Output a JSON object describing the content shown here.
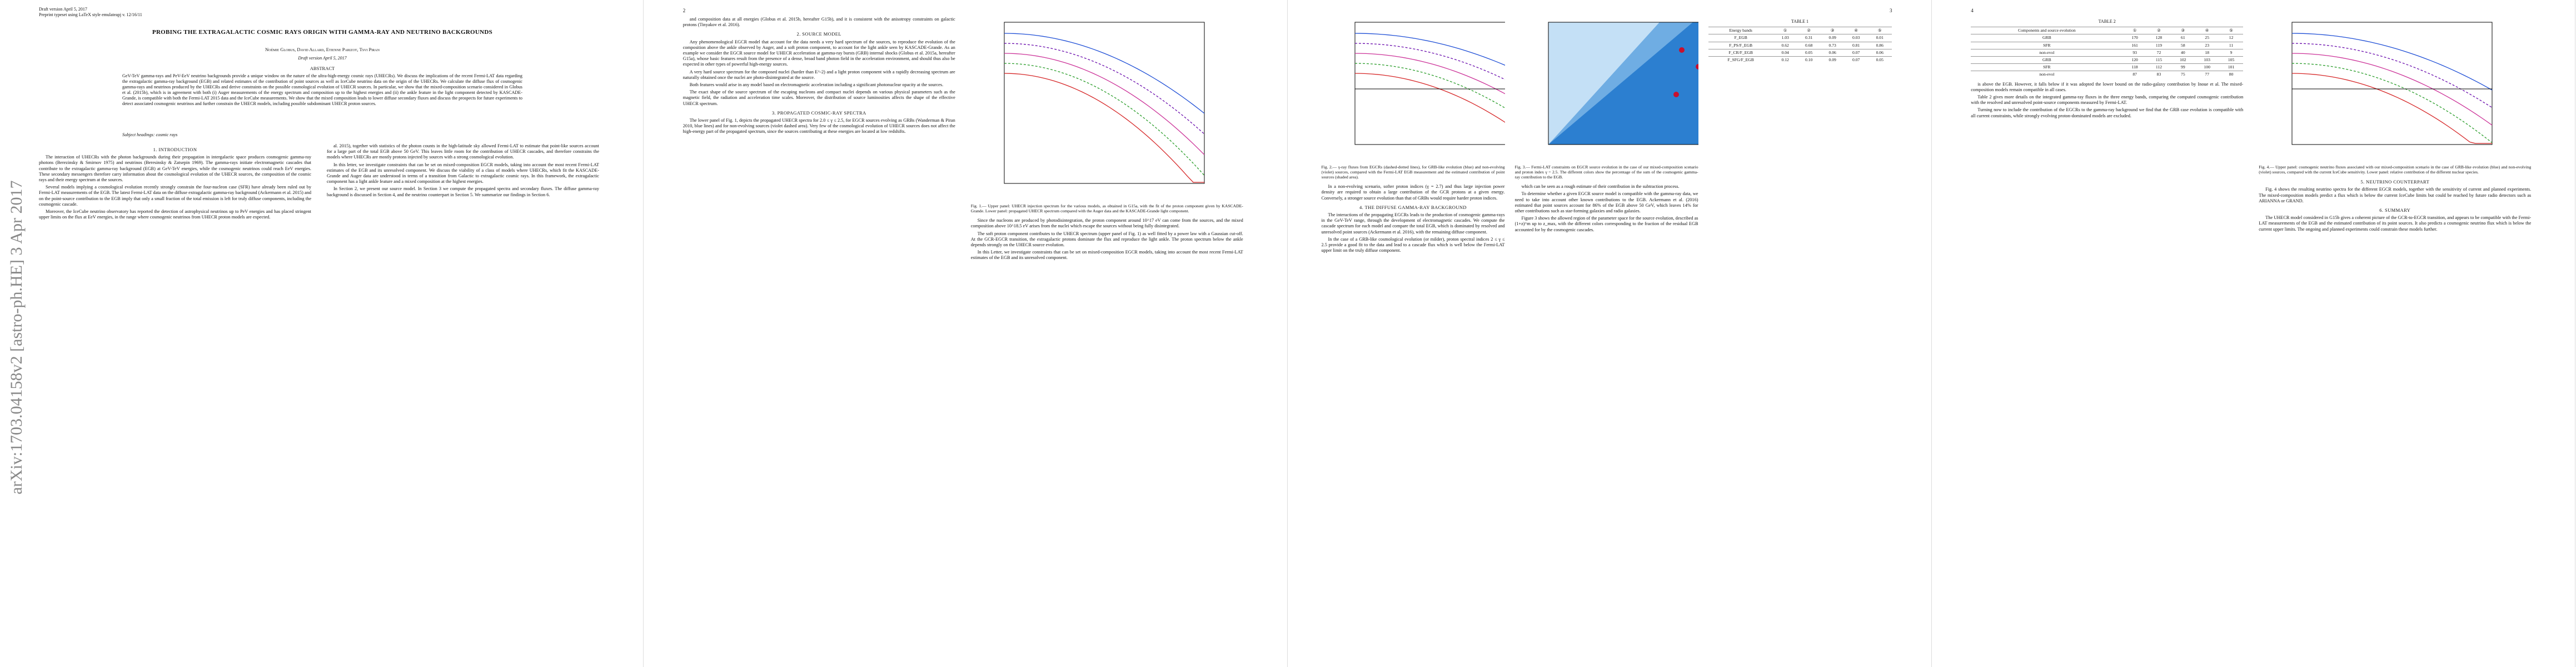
{
  "arxiv": "arXiv:1703.04158v2 [astro-ph.HE] 3 Apr 2017",
  "pages": [
    {
      "header": [
        "Draft version April 5, 2017",
        "Preprint typeset using LaTeX style emulateapj v. 12/16/11"
      ],
      "title": "PROBING THE EXTRAGALACTIC COSMIC RAYS ORIGIN WITH GAMMA-RAY AND NEUTRINO BACKGROUNDS",
      "authors": "Noémie Globus, David Allard, Etienne Parizot, Tsvi Piran",
      "date": "Draft version April 5, 2017",
      "abstract_heading": "ABSTRACT",
      "abstract": "GeV-TeV gamma-rays and PeV-EeV neutrino backgrounds provide a unique window on the nature of the ultra-high-energy cosmic rays (UHECRs). We discuss the implications of the recent Fermi-LAT data regarding the extragalactic gamma-ray background (EGB) and related estimates of the contribution of point sources as well as IceCube neutrino data on the origin of the UHECRs. We calculate the diffuse flux of cosmogenic gamma-rays and neutrinos produced by the UHECRs and derive constraints on the possible cosmological evolution of UHECR sources. In particular, we show that the mixed-composition scenario considered in Globus et al. (2015b), which is in agreement with both (i) Auger measurements of the energy spectrum and composition up to the highest energies and (ii) the ankle feature in the light component detected by KASCADE-Grande, is compatible with both the Fermi-LAT 2015 data and the IceCube measurements. We show that the mixed composition leads to lower diffuse secondary fluxes and discuss the prospects for future experiments to detect associated cosmogenic neutrinos and further constrain the UHECR models, including possible subdominant UHECR proton sources.",
      "subject": "Subject headings: cosmic rays",
      "columns": [
        [
          {
            "h": "1. INTRODUCTION"
          },
          {
            "p": "The interaction of UHECRs with the photon backgrounds during their propagation in intergalactic space produces cosmogenic gamma-ray photons (Berezinsky & Smirnov 1975) and neutrinos (Beresinsky & Zatsepin 1969). The gamma-rays initiate electromagnetic cascades that contribute to the extragalactic gamma-ray background (EGB) at GeV-TeV energies, while the cosmogenic neutrinos could reach EeV energies. These secondary messengers therefore carry information about the cosmological evolution of the UHECR sources, the composition of the cosmic rays and their energy spectrum at the sources."
          },
          {
            "p": "Several models implying a cosmological evolution recently strongly constrain the four-nucleon case (SFR) have already been ruled out by Fermi-LAT measurements of the EGB. The latest Fermi-LAT data on the diffuse extragalactic gamma-ray background (Ackermann et al. 2015) and on the point-source contribution to the EGB imply that only a small fraction of the total emission is left for truly diffuse components, including the cosmogenic cascade."
          },
          {
            "p": "Moreover, the IceCube neutrino observatory has reported the detection of astrophysical neutrinos up to PeV energies and has placed stringent upper limits on the flux at EeV energies, in the range where cosmogenic neutrinos from UHECR proton models are expected."
          }
        ],
        [
          {
            "p": "al. 2015), together with statistics of the photon counts in the high-latitude sky allowed Fermi-LAT to estimate that point-like sources account for a large part of the total EGB above 50 GeV. This leaves little room for the contribution of UHECR cascades, and therefore constrains the models where UHECRs are mostly protons injected by sources with a strong cosmological evolution."
          },
          {
            "p": "In this letter, we investigate constraints that can be set on mixed-composition EGCR models, taking into account the most recent Fermi-LAT estimates of the EGB and its unresolved component. We discuss the viability of a class of models where UHECRs, which fit the KASCADE-Grande and Auger data are understood in terms of a transition from Galactic to extragalactic cosmic rays. In this framework, the extragalactic component has a light ankle feature and a mixed composition at the highest energies."
          },
          {
            "p": "In Section 2, we present our source model. In Section 3 we compute the propagated spectra and secondary fluxes. The diffuse gamma-ray background is discussed in Section 4, and the neutrino counterpart in Section 5. We summarize our findings in Section 6."
          }
        ]
      ]
    },
    {
      "number": "2",
      "columns": [
        [
          {
            "p": "and composition data at all energies (Globus et al. 2015b, hereafter G15b), and it is consistent with the anisotropy constraints on galactic protons (Tinyakov et al. 2016)."
          },
          {
            "h": "2. SOURCE MODEL"
          },
          {
            "p": "Any phenomenological EGCR model that account for the data needs a very hard spectrum of the sources, to reproduce the evolution of the composition above the ankle observed by Auger, and a soft proton component, to account for the light ankle seen by KASCADE-Grande. As an example we consider the EGCR source model for UHECR acceleration at gamma-ray bursts (GRB) internal shocks (Globus et al. 2015a, hereafter G15a), whose basic features result from the presence of a dense, broad band photon field in the acceleration environment, and should thus also be expected in other types of powerful high-energy sources."
          },
          {
            "p": "A very hard source spectrum for the composed nuclei (harder than E^-2) and a light proton component with a rapidly decreasing spectrum are naturally obtained once the nuclei are photo-disintegrated at the source."
          },
          {
            "p": "Both features would arise in any model based on electromagnetic acceleration including a significant photonuclear opacity at the sources."
          },
          {
            "p": "The exact shape of the source spectrum of the escaping nucleons and compact nuclei depends on various physical parameters such as the magnetic field, the radiation and acceleration time scales. Moreover, the distribution of source luminosities affects the shape of the effective UHECR spectrum."
          },
          {
            "h": "3. PROPAGATED COSMIC-RAY SPECTRA"
          },
          {
            "p": "The lower panel of Fig. 1, depicts the propagated UHECR spectra for 2.0 ≤ γ ≤ 2.5, for EGCR sources evolving as GRBs (Wanderman & Piran 2010, blue lines) and for non-evolving sources (violet dashed area). Very few of the cosmological evolution of UHECR sources does not affect the high-energy part of the propagated spectrum, since the sources contributing at these energies are located at low redshifts."
          }
        ],
        [
          {
            "fig": "Fig. 1.— Upper panel: UHECR injection spectrum for the various models, as obtained in G15a, with the fit of the proton component given by KASCADE-Grande. Lower panel: propagated UHECR spectrum compared with the Auger data and the KASCADE-Grande light component."
          },
          {
            "p": "Since the nucleons are produced by photodisintegration, the proton component around 10^17 eV can come from the sources, and the mixed composition above 10^18.5 eV arises from the nuclei which escape the sources without being fully disintegrated."
          },
          {
            "p": "The soft proton component contributes to the UHECR spectrum (upper panel of Fig. 1) as well fitted by a power law with a Gaussian cut-off. At the GCR-EGCR transition, the extragalactic protons dominate the flux and reproduce the light ankle. The proton spectrum below the ankle depends strongly on the UHECR source evolution."
          },
          {
            "p": "In this Letter, we investigate constraints that can be set on mixed-composition EGCR models, taking into account the most recent Fermi-LAT estimates of the EGB and its unresolved component."
          }
        ]
      ]
    },
    {
      "number": "3",
      "columns": [
        [
          {
            "fig": "Fig. 2.— γ-ray fluxes from EGCRs (dashed-dotted lines), for GRB-like evolution (blue) and non-evolving (violet) sources, compared with the Fermi-LAT EGB measurement and the estimated contribution of point sources (shaded area)."
          },
          {
            "p": "In a non-evolving scenario, softer proton indices (γ = 2.7) and thus large injection power density are required to obtain a large contribution of the GCR protons at a given energy. Conversely, a stronger source evolution than that of GRBs would require harder proton indices."
          },
          {
            "h": "4. THE DIFFUSE GAMMA-RAY BACKGROUND"
          },
          {
            "p": "The interactions of the propagating EGCRs leads to the production of cosmogenic gamma-rays in the GeV-TeV range, through the development of electromagnetic cascades. We compute the cascade spectrum for each model and compare the total EGB, which is dominated by resolved and unresolved point sources (Ackermann et al. 2016), with the remaining diffuse component."
          },
          {
            "p": "In the case of a GRB-like cosmological evolution (or milder), proton spectral indices 2 ≤ γ ≤ 2.5 provide a good fit to the data and lead to a cascade flux which is well below the Fermi-LAT upper limit on the truly diffuse component."
          }
        ],
        [
          {
            "fig": "Fig. 3.— Fermi-LAT constraints on EGCR source evolution in the case of our mixed-composition scenario and proton index γ = 2.5. The different colors show the percentage of the sum of the cosmogenic gamma-ray contribution to the EGB."
          },
          {
            "p": "which can be seen as a rough estimate of their contribution in the subtraction process."
          },
          {
            "p": "To determine whether a given EGCR source model is compatible with the gamma-ray data, we need to take into account other known contributions to the EGB. Ackermann et al. (2016) estimated that point sources account for 86% of the EGB above 50 GeV, which leaves 14% for other contributions such as star-forming galaxies and radio galaxies."
          },
          {
            "p": "Figure 3 shows the allowed region of the parameter space for the source evolution, described as (1+z)^m up to z_max, with the different colors corresponding to the fraction of the residual EGB accounted for by the cosmogenic cascades."
          }
        ],
        [
          {
            "table": "TABLE 1"
          }
        ]
      ]
    },
    {
      "number": "4",
      "columns": [
        [
          {
            "table": "TABLE 2"
          },
          {
            "p": "is above the EGB. However, it falls below if it was adopted the lower bound on the radio-galaxy contribution by Inoue et al. The mixed-composition models remain compatible in all cases."
          },
          {
            "p": "Table 2 gives more details on the integrated gamma-ray fluxes in the three energy bands, comparing the computed cosmogenic contribution with the resolved and unresolved point-source components measured by Fermi-LAT."
          },
          {
            "p": "Turning now to include the contribution of the EGCRs to the gamma-ray background we find that the GRB case evolution is compatible with all current constraints, while strongly evolving proton-dominated models are excluded."
          }
        ],
        [
          {
            "fig": "Fig. 4.— Upper panel: cosmogenic neutrino fluxes associated with our mixed-composition scenario in the case of GRB-like evolution (blue) and non-evolving (violet) sources, compared with the current IceCube sensitivity. Lower panel: relative contribution of the different nuclear species."
          },
          {
            "h": "5. NEUTRINO COUNTERPART"
          },
          {
            "p": "Fig. 4 shows the resulting neutrino spectra for the different EGCR models, together with the sensitivity of current and planned experiments. The mixed-composition models predict a flux which is below the current IceCube limits but could be reached by future radio detectors such as ARIANNA or GRAND."
          },
          {
            "h": "6. SUMMARY"
          },
          {
            "p": "The UHECR model considered in G15b gives a coherent picture of the GCR-to-EGCR transition, and appears to be compatible with the Fermi-LAT measurements of the EGB and the estimated contribution of its point sources. It also predicts a cosmogenic neutrino flux which is below the current upper limits. The ongoing and planned experiments could constrain these models further."
          }
        ]
      ]
    }
  ],
  "table1": {
    "header": [
      "Energy bands",
      "①",
      "②",
      "③",
      "④",
      "⑤"
    ],
    "rows": [
      [
        "F_EGB",
        "1.03",
        "0.31",
        "0.09",
        "0.03",
        "0.01"
      ],
      [
        "F_PS/F_EGB",
        "0.62",
        "0.68",
        "0.73",
        "0.81",
        "0.86"
      ],
      [
        "F_CR/F_EGB",
        "0.04",
        "0.05",
        "0.06",
        "0.07",
        "0.06"
      ],
      [
        "F_SFG/F_EGB",
        "0.12",
        "0.10",
        "0.09",
        "0.07",
        "0.05"
      ]
    ]
  },
  "table2": {
    "header": [
      "Components and source evolution",
      "①",
      "②",
      "③",
      "④",
      "⑤"
    ],
    "rows": [
      [
        "GRB",
        "170",
        "128",
        "61",
        "25",
        "12"
      ],
      [
        "SFR",
        "161",
        "119",
        "58",
        "23",
        "11"
      ],
      [
        "non-evol",
        "93",
        "72",
        "40",
        "18",
        "9"
      ],
      [
        "GRB",
        "120",
        "115",
        "102",
        "103",
        "105"
      ],
      [
        "SFR",
        "118",
        "112",
        "99",
        "100",
        "101"
      ],
      [
        "non-evol",
        "87",
        "83",
        "75",
        "77",
        "80"
      ]
    ]
  }
}
